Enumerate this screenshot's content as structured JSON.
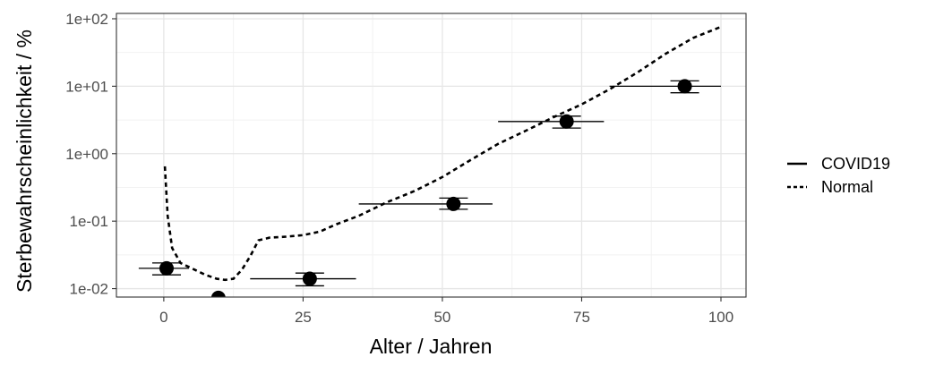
{
  "chart_data": {
    "type": "scatter",
    "xlabel": "Alter / Jahren",
    "ylabel": "Sterbewahrscheinlichkeit / %",
    "x_ticks": [
      0,
      25,
      50,
      75,
      100
    ],
    "x_tick_labels": [
      "0",
      "25",
      "50",
      "75",
      "100"
    ],
    "xlim": [
      -8.5,
      104.5
    ],
    "y_scale": "log",
    "y_ticks": [
      0.01,
      0.1,
      1,
      10,
      100
    ],
    "y_tick_labels": [
      "1e-02",
      "1e-01",
      "1e+00",
      "1e+01",
      "1e+02"
    ],
    "ylim": [
      0.0075,
      120
    ],
    "grid": true,
    "legend_position": "right",
    "legend": [
      {
        "label": "COVID19",
        "linetype": "solid"
      },
      {
        "label": "Normal",
        "linetype": "dashed"
      }
    ],
    "series": [
      {
        "name": "COVID19",
        "kind": "points_with_range",
        "points": [
          {
            "x": 0.5,
            "y": 0.02,
            "xmin": -4.5,
            "xmax": 4.5,
            "ylow": 0.016,
            "yhigh": 0.024
          },
          {
            "x": 9.8,
            "y": 0.0073,
            "xmin": 5,
            "xmax": 14,
            "ylow": 0.0073,
            "yhigh": 0.0073
          },
          {
            "x": 26.2,
            "y": 0.014,
            "xmin": 15.5,
            "xmax": 34.5,
            "ylow": 0.011,
            "yhigh": 0.017
          },
          {
            "x": 52,
            "y": 0.18,
            "xmin": 35,
            "xmax": 59,
            "ylow": 0.15,
            "yhigh": 0.22
          },
          {
            "x": 72.3,
            "y": 3.0,
            "xmin": 60,
            "xmax": 79,
            "ylow": 2.4,
            "yhigh": 3.6
          },
          {
            "x": 93.5,
            "y": 10.0,
            "xmin": 80,
            "xmax": 100,
            "ylow": 8.0,
            "yhigh": 12.0
          }
        ]
      },
      {
        "name": "Normal",
        "kind": "line",
        "points": [
          {
            "x": 0.2,
            "y": 0.65
          },
          {
            "x": 0.7,
            "y": 0.12
          },
          {
            "x": 1.5,
            "y": 0.04
          },
          {
            "x": 3,
            "y": 0.024
          },
          {
            "x": 5,
            "y": 0.02
          },
          {
            "x": 7.5,
            "y": 0.016
          },
          {
            "x": 9.5,
            "y": 0.014
          },
          {
            "x": 11,
            "y": 0.0135
          },
          {
            "x": 12.5,
            "y": 0.014
          },
          {
            "x": 14,
            "y": 0.019
          },
          {
            "x": 15.5,
            "y": 0.03
          },
          {
            "x": 17,
            "y": 0.052
          },
          {
            "x": 19,
            "y": 0.057
          },
          {
            "x": 22,
            "y": 0.059
          },
          {
            "x": 25,
            "y": 0.062
          },
          {
            "x": 28,
            "y": 0.07
          },
          {
            "x": 31,
            "y": 0.09
          },
          {
            "x": 35,
            "y": 0.12
          },
          {
            "x": 40,
            "y": 0.19
          },
          {
            "x": 45,
            "y": 0.28
          },
          {
            "x": 50,
            "y": 0.45
          },
          {
            "x": 55,
            "y": 0.8
          },
          {
            "x": 60,
            "y": 1.4
          },
          {
            "x": 65,
            "y": 2.2
          },
          {
            "x": 70,
            "y": 3.5
          },
          {
            "x": 75,
            "y": 5.4
          },
          {
            "x": 80,
            "y": 9.0
          },
          {
            "x": 85,
            "y": 16
          },
          {
            "x": 90,
            "y": 30
          },
          {
            "x": 95,
            "y": 52
          },
          {
            "x": 100,
            "y": 76
          }
        ]
      }
    ]
  }
}
